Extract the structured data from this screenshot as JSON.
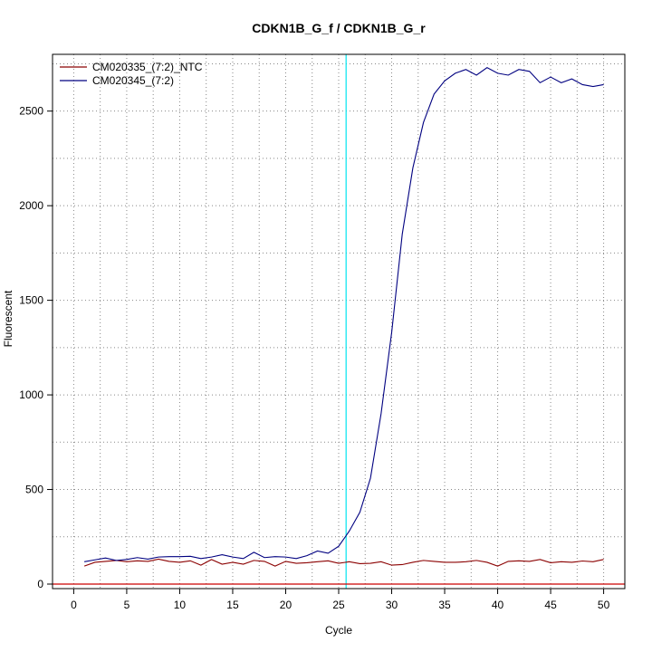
{
  "chart_data": {
    "type": "line",
    "title": "CDKN1B_G_f / CDKN1B_G_r",
    "xlabel": "Cycle",
    "ylabel": "Fluorescent",
    "xlim": [
      -2,
      52
    ],
    "ylim": [
      0,
      2800
    ],
    "xticks": [
      0,
      5,
      10,
      15,
      20,
      25,
      30,
      35,
      40,
      45,
      50
    ],
    "yticks": [
      0,
      500,
      1000,
      1500,
      2000,
      2500
    ],
    "grid": true,
    "grid_style": "dotted",
    "legend_position": "top-left",
    "threshold": {
      "orientation": "vertical",
      "x": 25.7,
      "color": "#00e5ee"
    },
    "baseline": {
      "orientation": "horizontal",
      "y": 0,
      "color": "#cc0000"
    },
    "series": [
      {
        "name": "CM020335_(7:2)_NTC",
        "color": "#8b0000",
        "x": [
          1,
          2,
          3,
          4,
          5,
          6,
          7,
          8,
          9,
          10,
          11,
          12,
          13,
          14,
          15,
          16,
          17,
          18,
          19,
          20,
          21,
          22,
          23,
          24,
          25,
          26,
          27,
          28,
          29,
          30,
          31,
          32,
          33,
          34,
          35,
          36,
          37,
          38,
          39,
          40,
          41,
          42,
          43,
          44,
          45,
          46,
          47,
          48,
          49,
          50
        ],
        "values": [
          95,
          115,
          120,
          125,
          118,
          123,
          120,
          132,
          120,
          115,
          123,
          100,
          130,
          105,
          115,
          105,
          125,
          120,
          95,
          120,
          110,
          113,
          118,
          123,
          110,
          118,
          108,
          110,
          118,
          100,
          103,
          115,
          125,
          120,
          115,
          115,
          118,
          125,
          115,
          95,
          120,
          123,
          120,
          130,
          113,
          118,
          115,
          122,
          118,
          130
        ]
      },
      {
        "name": "CM020345_(7:2)",
        "color": "#000080",
        "x": [
          1,
          2,
          3,
          4,
          5,
          6,
          7,
          8,
          9,
          10,
          11,
          12,
          13,
          14,
          15,
          16,
          17,
          18,
          19,
          20,
          21,
          22,
          23,
          24,
          25,
          26,
          27,
          28,
          29,
          30,
          31,
          32,
          33,
          34,
          35,
          36,
          37,
          38,
          39,
          40,
          41,
          42,
          43,
          44,
          45,
          46,
          47,
          48,
          49,
          50
        ],
        "values": [
          118,
          128,
          138,
          125,
          130,
          140,
          132,
          143,
          145,
          145,
          147,
          135,
          143,
          155,
          143,
          135,
          168,
          140,
          145,
          143,
          135,
          150,
          175,
          163,
          200,
          280,
          380,
          560,
          900,
          1330,
          1850,
          2200,
          2440,
          2590,
          2660,
          2700,
          2720,
          2690,
          2730,
          2700,
          2690,
          2720,
          2710,
          2650,
          2680,
          2650,
          2670,
          2640,
          2630,
          2640
        ]
      }
    ]
  }
}
